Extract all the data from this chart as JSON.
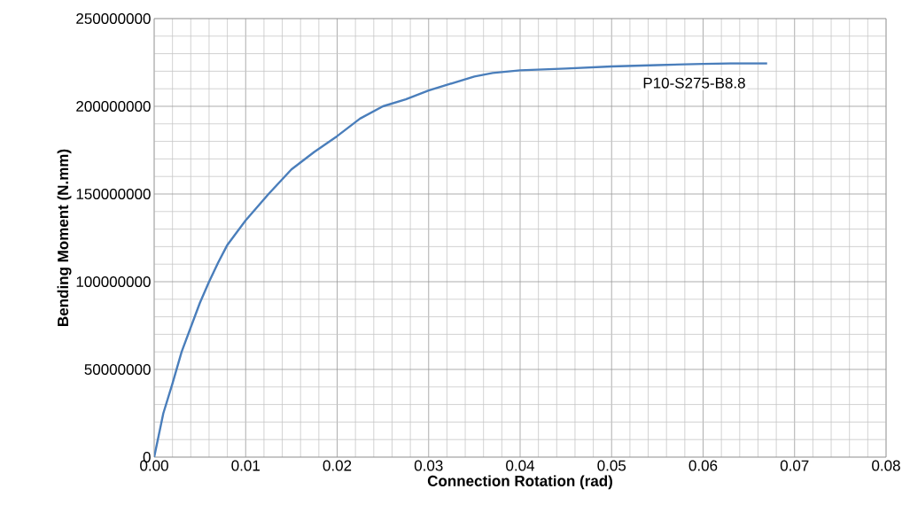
{
  "chart_data": {
    "type": "line",
    "xlabel": "Connection Rotation (rad)",
    "ylabel": "Bending Moment (N.mm)",
    "x": [
      0,
      0.001,
      0.002,
      0.003,
      0.004,
      0.005,
      0.006,
      0.007,
      0.008,
      0.01,
      0.0125,
      0.015,
      0.0175,
      0.02,
      0.0225,
      0.025,
      0.0275,
      0.03,
      0.0325,
      0.035,
      0.037,
      0.04,
      0.045,
      0.05,
      0.055,
      0.06,
      0.063,
      0.067
    ],
    "series": [
      {
        "name": "P10-S275-B8.8",
        "color": "#4a7ebb",
        "values": [
          0,
          25000000,
          42000000,
          60000000,
          74000000,
          88000000,
          100000000,
          111000000,
          121000000,
          135000000,
          150000000,
          164000000,
          174000000,
          183000000,
          193000000,
          200000000,
          204000000,
          209000000,
          213000000,
          217000000,
          219000000,
          220500000,
          221500000,
          222700000,
          223500000,
          224200000,
          224500000,
          224500000
        ]
      }
    ],
    "xlim": [
      0,
      0.08
    ],
    "ylim": [
      0,
      250000000
    ],
    "xticks": [
      {
        "value": 0,
        "label": "0.00"
      },
      {
        "value": 0.01,
        "label": "0.01"
      },
      {
        "value": 0.02,
        "label": "0.02"
      },
      {
        "value": 0.03,
        "label": "0.03"
      },
      {
        "value": 0.04,
        "label": "0.04"
      },
      {
        "value": 0.05,
        "label": "0.05"
      },
      {
        "value": 0.06,
        "label": "0.06"
      },
      {
        "value": 0.07,
        "label": "0.07"
      },
      {
        "value": 0.08,
        "label": "0.08"
      }
    ],
    "yticks": [
      0,
      50000000,
      100000000,
      150000000,
      200000000,
      250000000
    ],
    "grid": true,
    "legend": false,
    "marker": "none",
    "line_style": "solid"
  }
}
